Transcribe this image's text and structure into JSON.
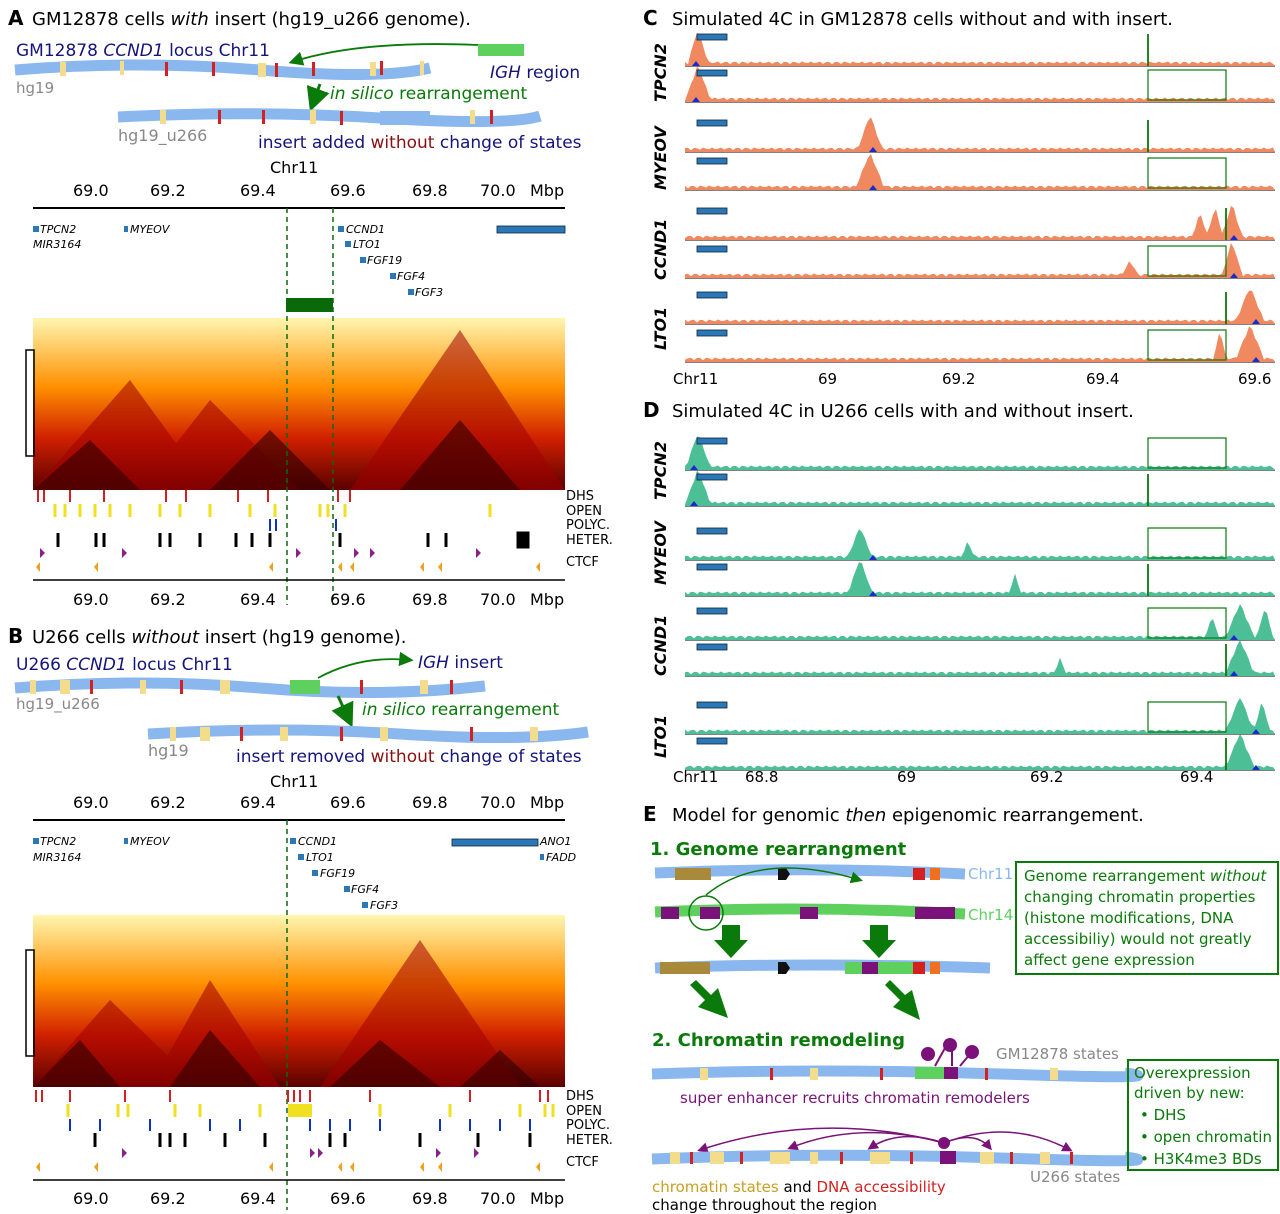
{
  "panel_a": {
    "letter": "A",
    "title_pre": "GM12878 cells ",
    "title_em": "with",
    "title_post": " insert (hg19_u266 genome).",
    "locus_pre": "GM12878 ",
    "locus_em": "CCND1",
    "locus_post": " locus Chr11",
    "igh_em": "IGH",
    "igh_post": " region",
    "hg_top": "hg19",
    "silico_em": "in silico",
    "silico_post": " rearrangement",
    "hg_bottom": "hg19_u266",
    "note_pre": "insert added ",
    "note_mid": "without",
    "note_post": " change of states",
    "chr": "Chr11",
    "ticks": [
      "69.0",
      "69.2",
      "69.4",
      "69.6",
      "69.8",
      "70.0"
    ],
    "unit": "Mbp",
    "genes": [
      "TPCN2",
      "MIR3164",
      "MYEOV",
      "CCND1",
      "LTO1",
      "FGF19",
      "FGF4",
      "FGF3"
    ]
  },
  "panel_b": {
    "letter": "B",
    "title_pre": "U266 cells ",
    "title_em": "without",
    "title_post": " insert (hg19 genome).",
    "locus_pre": "U266 ",
    "locus_em": "CCND1",
    "locus_post": " locus Chr11",
    "igh_em": "IGH",
    "igh_post": " insert",
    "hg_top": "hg19_u266",
    "silico_em": "in silico",
    "silico_post": " rearrangement",
    "hg_bottom": "hg19",
    "note_pre": "insert removed ",
    "note_mid": "without",
    "note_post": " change of states",
    "chr": "Chr11",
    "ticks": [
      "69.0",
      "69.2",
      "69.4",
      "69.6",
      "69.8",
      "70.0"
    ],
    "unit": "Mbp",
    "genes": [
      "TPCN2",
      "MIR3164",
      "MYEOV",
      "CCND1",
      "LTO1",
      "FGF19",
      "FGF4",
      "FGF3",
      "ANO1",
      "FADD"
    ]
  },
  "tracks": [
    "DHS",
    "OPEN",
    "POLYC.",
    "HETER.",
    "CTCF"
  ],
  "panel_c": {
    "letter": "C",
    "title": "Simulated 4C in GM12878 cells without and with insert.",
    "rows": [
      "TPCN2",
      "MYEOV",
      "CCND1",
      "LTO1"
    ],
    "axis_chr": "Chr11",
    "ticks": [
      "69",
      "69.2",
      "69.4",
      "69.6"
    ]
  },
  "panel_d": {
    "letter": "D",
    "title": "Simulated 4C in U266 cells with and without insert.",
    "rows": [
      "TPCN2",
      "MYEOV",
      "CCND1",
      "LTO1"
    ],
    "axis_chr": "Chr11",
    "ticks": [
      "68.8",
      "69",
      "69.2",
      "69.4"
    ]
  },
  "panel_e": {
    "letter": "E",
    "title_pre": "Model for genomic ",
    "title_em": "then",
    "title_post": " epigenomic rearrangement.",
    "step1": "1. Genome rearrangment",
    "chr11": "Chr11",
    "chr14": "Chr14",
    "box1_pre": "Genome rearrangement ",
    "box1_em": "without",
    "box1_l2": "changing chromatin properties",
    "box1_l3": "(histone modifications, DNA",
    "box1_l4": "accessibiliy) would not greatly",
    "box1_l5": "affect gene expression",
    "step2": "2. Chromatin remodeling",
    "gm_states": "GM12878 states",
    "super": "super enhancer recruits chromatin remodelers",
    "u266_states": "U266 states",
    "cs_a": "chromatin states",
    "cs_b": " and ",
    "cs_c": "DNA accessibility",
    "cs_d": "change throughout the region",
    "box2_l1": "Overexpression",
    "box2_l2": "driven by new:",
    "box2_items": [
      "DHS",
      "open chromatin",
      "H3K4me3 BDs"
    ]
  },
  "colors": {
    "chrom_blue": "#8ab8ee",
    "chrom_yellow": "#f3dc8c",
    "chrom_red": "#d42020",
    "igh_green": "#5ed05e",
    "dark_green": "#0a7a0a",
    "title_blue": "#14147a",
    "purple": "#7a127a",
    "salmon": "#f08860",
    "teal": "#4cbf96",
    "gene_blue": "#2a78b8"
  }
}
